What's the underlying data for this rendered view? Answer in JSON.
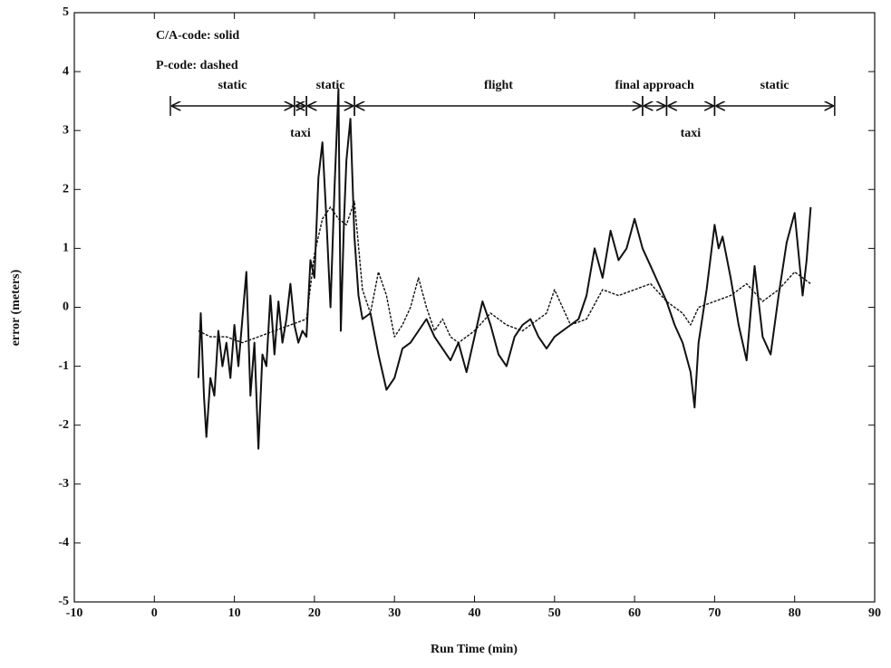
{
  "chart_data": {
    "type": "line",
    "xlabel": "Run Time (min)",
    "ylabel": "error (meters)",
    "xlim": [
      -10,
      90
    ],
    "xticks": [
      -10,
      0,
      10,
      20,
      30,
      40,
      50,
      60,
      70,
      80,
      90
    ],
    "ylim": [
      -5,
      5
    ],
    "yticks": [
      -5,
      -4,
      -3,
      -2,
      -1,
      0,
      1,
      2,
      3,
      4,
      5
    ],
    "grid": false,
    "series": [
      {
        "name": "C/A-code: solid",
        "color": "#111111",
        "style": "solid",
        "x": [
          5.5,
          5.8,
          6.2,
          6.5,
          7,
          7.5,
          8,
          8.5,
          9,
          9.5,
          10,
          10.5,
          11,
          11.5,
          12,
          12.5,
          13,
          13.5,
          14,
          14.5,
          15,
          15.5,
          16,
          16.5,
          17,
          17.5,
          18,
          18.5,
          19,
          19.5,
          20,
          20.5,
          21,
          21.5,
          22,
          22.5,
          23,
          23.3,
          23.7,
          24,
          24.5,
          25,
          25.5,
          26,
          27,
          28,
          29,
          30,
          31,
          32,
          33,
          34,
          35,
          36,
          37,
          38,
          39,
          40,
          41,
          42,
          43,
          44,
          45,
          46,
          47,
          48,
          49,
          50,
          51,
          52,
          53,
          54,
          55,
          56,
          57,
          58,
          59,
          60,
          61,
          62,
          63,
          64,
          65,
          66,
          67,
          67.5,
          68,
          69,
          70,
          70.5,
          71,
          72,
          73,
          74,
          75,
          76,
          77,
          78,
          79,
          80,
          81,
          81.5,
          82
        ],
        "values": [
          -1.2,
          -0.1,
          -1.5,
          -2.2,
          -1.2,
          -1.5,
          -0.4,
          -1.0,
          -0.6,
          -1.2,
          -0.3,
          -1.0,
          -0.2,
          0.6,
          -1.5,
          -0.6,
          -2.4,
          -0.8,
          -1.0,
          0.2,
          -0.8,
          0.1,
          -0.6,
          -0.2,
          0.4,
          -0.3,
          -0.6,
          -0.4,
          -0.5,
          0.8,
          0.5,
          2.2,
          2.8,
          1.5,
          0.0,
          2.0,
          3.7,
          -0.4,
          1.5,
          2.5,
          3.2,
          1.2,
          0.2,
          -0.2,
          -0.1,
          -0.8,
          -1.4,
          -1.2,
          -0.7,
          -0.6,
          -0.4,
          -0.2,
          -0.5,
          -0.7,
          -0.9,
          -0.6,
          -1.1,
          -0.5,
          0.1,
          -0.3,
          -0.8,
          -1.0,
          -0.5,
          -0.3,
          -0.2,
          -0.5,
          -0.7,
          -0.5,
          -0.4,
          -0.3,
          -0.2,
          0.2,
          1.0,
          0.5,
          1.3,
          0.8,
          1.0,
          1.5,
          1.0,
          0.7,
          0.4,
          0.1,
          -0.3,
          -0.6,
          -1.1,
          -1.7,
          -0.6,
          0.3,
          1.4,
          1.0,
          1.2,
          0.5,
          -0.3,
          -0.9,
          0.7,
          -0.5,
          -0.8,
          0.2,
          1.1,
          1.6,
          0.2,
          0.8,
          1.7
        ]
      },
      {
        "name": "P-code: dashed",
        "color": "#111111",
        "style": "dashed",
        "x": [
          5.5,
          7,
          9,
          11,
          13,
          15,
          17,
          19,
          20,
          21,
          22,
          23,
          24,
          25,
          26,
          27,
          28,
          29,
          30,
          31,
          32,
          33,
          34,
          35,
          36,
          37,
          38,
          40,
          42,
          44,
          46,
          48,
          49,
          50,
          51,
          52,
          54,
          56,
          58,
          60,
          62,
          64,
          66,
          67,
          68,
          70,
          72,
          74,
          76,
          78,
          80,
          82
        ],
        "values": [
          -0.4,
          -0.5,
          -0.5,
          -0.6,
          -0.5,
          -0.4,
          -0.3,
          -0.2,
          0.9,
          1.5,
          1.7,
          1.5,
          1.4,
          1.8,
          0.3,
          -0.1,
          0.6,
          0.2,
          -0.5,
          -0.3,
          0.0,
          0.5,
          0.0,
          -0.4,
          -0.2,
          -0.5,
          -0.6,
          -0.4,
          -0.1,
          -0.3,
          -0.4,
          -0.2,
          -0.1,
          0.3,
          0.0,
          -0.3,
          -0.2,
          0.3,
          0.2,
          0.3,
          0.4,
          0.1,
          -0.1,
          -0.3,
          0.0,
          0.1,
          0.2,
          0.4,
          0.1,
          0.3,
          0.6,
          0.4
        ]
      }
    ],
    "phases": [
      {
        "label": "static",
        "start": 2,
        "end": 17.5
      },
      {
        "label": "taxi",
        "start": 17.5,
        "end": 19
      },
      {
        "label": "static",
        "start": 19,
        "end": 25
      },
      {
        "label": "flight",
        "start": 25,
        "end": 61
      },
      {
        "label": "final approach",
        "start": 61,
        "end": 64
      },
      {
        "label": "taxi",
        "start": 64,
        "end": 70
      },
      {
        "label": "static",
        "start": 70,
        "end": 85
      }
    ]
  }
}
